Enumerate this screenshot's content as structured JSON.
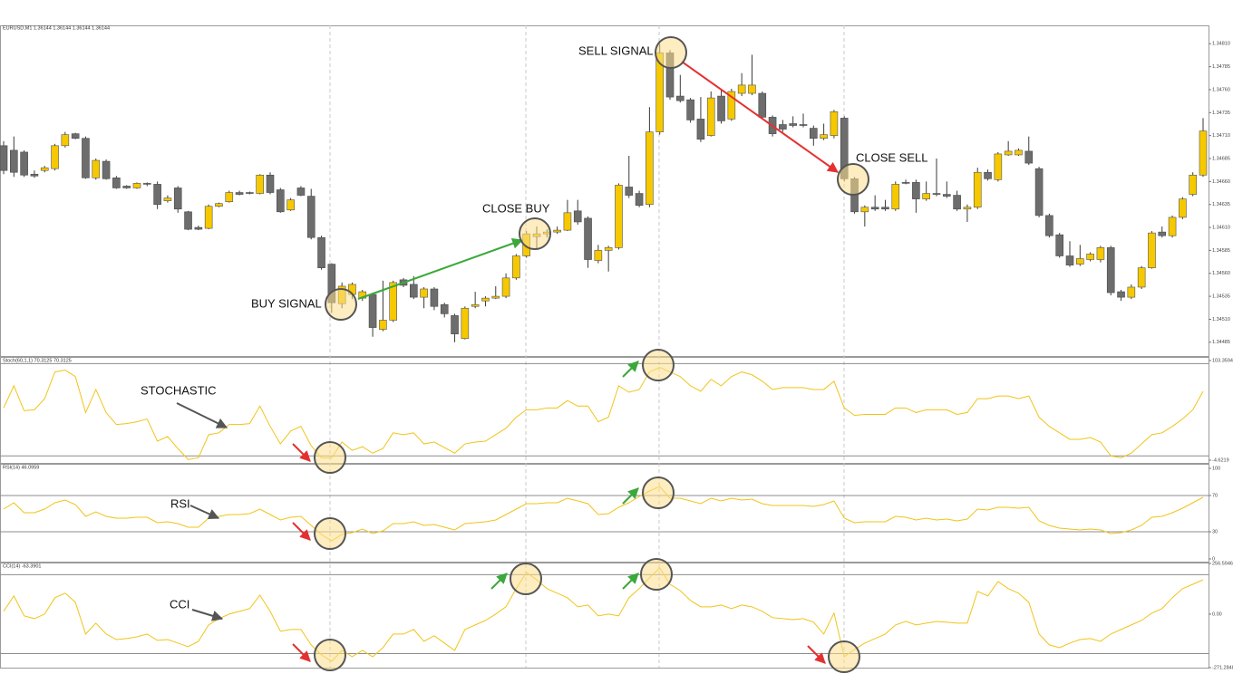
{
  "chart_data": [
    {
      "type": "candlestick",
      "title": "EURUSD,M1 1.36144 1.36144 1.36144 1.36144",
      "open": [
        1.34699,
        1.34694,
        1.34692,
        1.34668,
        1.34672,
        1.34674,
        1.34699,
        1.34712,
        1.34707,
        1.34664,
        1.34682,
        1.34664,
        1.34655,
        1.34653,
        1.34658,
        1.34657,
        1.34639,
        1.34653,
        1.34627,
        1.3461,
        1.34609,
        1.34633,
        1.34638,
        1.34648,
        1.34648,
        1.34647,
        1.34667,
        1.34651,
        1.34629,
        1.34653,
        1.34644,
        1.34599,
        1.3457,
        1.34527,
        1.34537,
        1.34533,
        1.34537,
        1.34499,
        1.34509,
        1.34553,
        1.34548,
        1.34534,
        1.34543,
        1.34526,
        1.34514,
        1.34489,
        1.34524,
        1.3453,
        1.34533,
        1.34535,
        1.34555,
        1.34579,
        1.346,
        1.34603,
        1.34605,
        1.34607,
        1.34628,
        1.3462,
        1.34574,
        1.34585,
        1.34588,
        1.34654,
        1.34647,
        1.34635,
        1.34714,
        1.348,
        1.34753,
        1.34749,
        1.34728,
        1.3471,
        1.34753,
        1.34728,
        1.34756,
        1.34756,
        1.34756,
        1.3473,
        1.34722,
        1.34723,
        1.34722,
        1.34718,
        1.34707,
        1.3471,
        1.34729,
        1.34663,
        1.34627,
        1.34632,
        1.34632,
        1.3463,
        1.34659,
        1.34659,
        1.34641,
        1.34647,
        1.34646,
        1.34645,
        1.3463,
        1.34632,
        1.3467,
        1.34662,
        1.34689,
        1.34689,
        1.34693,
        1.34674,
        1.34623,
        1.34602,
        1.34579,
        1.3457,
        1.34575,
        1.34575,
        1.34588,
        1.3454,
        1.34534,
        1.34545,
        1.34566,
        1.34605,
        1.34601,
        1.34621,
        1.34646,
        1.34667
      ],
      "high": [
        1.34704,
        1.34709,
        1.34694,
        1.34672,
        1.34677,
        1.34701,
        1.34714,
        1.34713,
        1.34709,
        1.34685,
        1.34684,
        1.34666,
        1.34656,
        1.34659,
        1.34659,
        1.3466,
        1.34645,
        1.34655,
        1.34628,
        1.34612,
        1.34635,
        1.34637,
        1.3465,
        1.3465,
        1.34649,
        1.34668,
        1.3467,
        1.34653,
        1.34642,
        1.34655,
        1.34652,
        1.34601,
        1.34571,
        1.3455,
        1.3455,
        1.34542,
        1.34539,
        1.34552,
        1.34552,
        1.34555,
        1.34557,
        1.34545,
        1.34545,
        1.34528,
        1.34516,
        1.34524,
        1.3454,
        1.34535,
        1.34546,
        1.3456,
        1.34581,
        1.34606,
        1.34611,
        1.34608,
        1.34611,
        1.3464,
        1.3464,
        1.34622,
        1.34591,
        1.3459,
        1.34658,
        1.34688,
        1.3465,
        1.34741,
        1.3481,
        1.34803,
        1.34776,
        1.34751,
        1.34752,
        1.34758,
        1.3476,
        1.34761,
        1.34778,
        1.34798,
        1.34758,
        1.34732,
        1.34727,
        1.34731,
        1.34734,
        1.34721,
        1.34723,
        1.34738,
        1.34731,
        1.34665,
        1.34634,
        1.34645,
        1.3464,
        1.3466,
        1.34662,
        1.34662,
        1.3466,
        1.34685,
        1.3466,
        1.3465,
        1.34635,
        1.34675,
        1.34673,
        1.34692,
        1.34704,
        1.34696,
        1.34709,
        1.34676,
        1.34625,
        1.34604,
        1.34595,
        1.34591,
        1.34583,
        1.3459,
        1.3459,
        1.34542,
        1.34548,
        1.34568,
        1.34606,
        1.34611,
        1.34623,
        1.34643,
        1.3467,
        1.34729
      ],
      "low": [
        1.34668,
        1.34665,
        1.34665,
        1.34664,
        1.3467,
        1.34672,
        1.34697,
        1.34706,
        1.34663,
        1.34662,
        1.34662,
        1.34652,
        1.34652,
        1.34652,
        1.34655,
        1.3463,
        1.34637,
        1.34626,
        1.34607,
        1.34607,
        1.34608,
        1.34632,
        1.34637,
        1.34645,
        1.34646,
        1.34646,
        1.34646,
        1.34626,
        1.34628,
        1.34644,
        1.34597,
        1.34564,
        1.34517,
        1.34522,
        1.34532,
        1.3453,
        1.34491,
        1.34497,
        1.34507,
        1.34545,
        1.34532,
        1.34522,
        1.3452,
        1.34512,
        1.34485,
        1.34488,
        1.34522,
        1.34524,
        1.34532,
        1.34533,
        1.34553,
        1.34577,
        1.34586,
        1.34599,
        1.34603,
        1.34606,
        1.34613,
        1.34566,
        1.34571,
        1.34562,
        1.34586,
        1.34642,
        1.34632,
        1.34632,
        1.34711,
        1.34749,
        1.34746,
        1.34724,
        1.34703,
        1.34709,
        1.34723,
        1.34726,
        1.34753,
        1.34754,
        1.34728,
        1.34709,
        1.34714,
        1.34719,
        1.34719,
        1.34699,
        1.34705,
        1.34707,
        1.3466,
        1.34625,
        1.34611,
        1.34628,
        1.34628,
        1.34628,
        1.34657,
        1.34626,
        1.34639,
        1.34644,
        1.34642,
        1.34628,
        1.34616,
        1.3463,
        1.34661,
        1.3466,
        1.34688,
        1.34688,
        1.34678,
        1.34621,
        1.34599,
        1.34577,
        1.34567,
        1.34568,
        1.34573,
        1.34572,
        1.34536,
        1.3453,
        1.34532,
        1.34543,
        1.34565,
        1.34599,
        1.34599,
        1.34619,
        1.34644,
        1.34665
      ],
      "close": [
        1.34672,
        1.3467,
        1.34667,
        1.34666,
        1.34675,
        1.34699,
        1.34711,
        1.34707,
        1.34664,
        1.34683,
        1.34663,
        1.34653,
        1.34653,
        1.34658,
        1.34657,
        1.34635,
        1.34642,
        1.3463,
        1.34608,
        1.34608,
        1.34633,
        1.34636,
        1.34648,
        1.34646,
        1.34647,
        1.34667,
        1.34648,
        1.34627,
        1.3464,
        1.34645,
        1.34599,
        1.34566,
        1.34528,
        1.34546,
        1.34548,
        1.3454,
        1.34501,
        1.34509,
        1.3455,
        1.34547,
        1.34534,
        1.34543,
        1.34524,
        1.34516,
        1.34494,
        1.34522,
        1.34526,
        1.34533,
        1.34535,
        1.34555,
        1.34579,
        1.34603,
        1.34603,
        1.34605,
        1.34607,
        1.34626,
        1.34616,
        1.34575,
        1.34585,
        1.34588,
        1.34656,
        1.34645,
        1.34634,
        1.34714,
        1.348,
        1.34752,
        1.34748,
        1.34727,
        1.34706,
        1.34751,
        1.34726,
        1.34758,
        1.34765,
        1.34765,
        1.3473,
        1.34712,
        1.34717,
        1.34721,
        1.34721,
        1.34707,
        1.34711,
        1.34736,
        1.34663,
        1.34627,
        1.34632,
        1.3463,
        1.3463,
        1.34657,
        1.34658,
        1.34641,
        1.34647,
        1.34646,
        1.34644,
        1.3463,
        1.34632,
        1.3467,
        1.34663,
        1.3469,
        1.34693,
        1.34694,
        1.3468,
        1.34623,
        1.34601,
        1.34579,
        1.34569,
        1.34576,
        1.34581,
        1.34588,
        1.34539,
        1.34534,
        1.34545,
        1.34566,
        1.34604,
        1.34601,
        1.34621,
        1.34641,
        1.34667,
        1.34715
      ],
      "up_color": "#f6c800",
      "down_color": "#6d6d6d",
      "ylim": [
        1.3447,
        1.3483
      ],
      "yticks": [
        {
          "value": 1.3481,
          "label": "1.34810"
        },
        1.34785,
        {
          "value": 1.3476,
          "label": "1.34760"
        },
        1.34735,
        {
          "value": 1.3471,
          "label": "1.34710"
        },
        1.34685,
        {
          "value": 1.3466,
          "label": "1.34660"
        },
        1.34635,
        {
          "value": 1.3461,
          "label": "1.34610"
        },
        1.34585,
        {
          "value": 1.3456,
          "label": "1.34560"
        },
        1.34535,
        {
          "value": 1.3451,
          "label": "1.34510"
        },
        1.34485
      ],
      "annotations": [
        "BUY SIGNAL",
        "CLOSE BUY",
        "SELL SIGNAL",
        "CLOSE SELL"
      ]
    },
    {
      "type": "line",
      "title": "Stoch(60,1,1) 70.3125 70.3125",
      "label": "STOCHASTIC",
      "color": "#f0c419",
      "values": [
        52,
        76,
        49,
        50,
        62,
        91,
        93,
        86,
        47,
        72,
        47,
        34,
        35,
        37,
        40,
        16,
        21,
        8,
        -4,
        -2,
        23,
        25,
        34,
        34,
        35,
        54,
        32,
        13,
        27,
        32,
        11,
        -2,
        -2,
        15,
        6,
        10,
        3,
        8,
        25,
        23,
        25,
        13,
        15,
        9,
        3,
        13,
        15,
        16,
        23,
        30,
        42,
        50,
        50,
        52,
        52,
        60,
        54,
        54,
        37,
        42,
        76,
        69,
        72,
        91,
        96,
        91,
        86,
        76,
        70,
        83,
        76,
        86,
        91,
        88,
        81,
        72,
        74,
        74,
        74,
        72,
        72,
        81,
        52,
        44,
        45,
        45,
        45,
        52,
        52,
        47,
        50,
        50,
        50,
        45,
        47,
        62,
        62,
        65,
        65,
        62,
        65,
        42,
        32,
        25,
        18,
        18,
        20,
        15,
        0,
        -2,
        3,
        13,
        23,
        25,
        32,
        40,
        50,
        70
      ],
      "ylim": [
        -4.6219,
        103.3594
      ],
      "yticks": [
        103.3594,
        -4.6219
      ],
      "levels": [
        100,
        0
      ]
    },
    {
      "type": "line",
      "title": "RSI(14) 46.0959",
      "label": "RSI",
      "color": "#f0c419",
      "values": [
        55,
        62,
        51,
        51,
        55,
        62,
        65,
        60,
        47,
        52,
        47,
        45,
        45,
        46,
        46,
        40,
        41,
        39,
        35,
        35,
        45,
        47,
        49,
        49,
        50,
        55,
        49,
        43,
        46,
        47,
        37,
        27,
        20,
        27,
        29,
        33,
        28,
        31,
        39,
        39,
        41,
        37,
        38,
        35,
        32,
        39,
        40,
        41,
        43,
        49,
        55,
        61,
        61,
        62,
        62,
        67,
        64,
        61,
        49,
        50,
        57,
        62,
        69,
        75,
        80,
        67,
        67,
        64,
        61,
        67,
        64,
        67,
        65,
        66,
        61,
        59,
        59,
        59,
        59,
        58,
        60,
        64,
        45,
        40,
        41,
        41,
        41,
        47,
        46,
        43,
        45,
        43,
        44,
        42,
        44,
        55,
        54,
        57,
        57,
        56,
        57,
        42,
        37,
        34,
        33,
        32,
        33,
        32,
        28,
        29,
        32,
        37,
        46,
        47,
        51,
        56,
        62,
        68
      ],
      "ylim": [
        0,
        100
      ],
      "yticks": [
        100,
        70,
        30,
        0
      ],
      "levels": [
        70,
        30
      ]
    },
    {
      "type": "line",
      "title": "CCI(14) -63.3901",
      "label": "CCI",
      "color": "#f0c419",
      "values": [
        14,
        92,
        -9,
        -23,
        0,
        83,
        106,
        60,
        -101,
        -46,
        -101,
        -129,
        -124,
        -115,
        -101,
        -133,
        -129,
        -147,
        -165,
        -138,
        -55,
        -23,
        0,
        14,
        28,
        96,
        14,
        -87,
        -78,
        -78,
        -156,
        -207,
        -239,
        -184,
        -216,
        -184,
        -216,
        -170,
        -101,
        -101,
        -78,
        -138,
        -110,
        -147,
        -184,
        -78,
        -55,
        -32,
        0,
        37,
        129,
        211,
        174,
        129,
        106,
        83,
        37,
        46,
        -9,
        0,
        -9,
        83,
        129,
        184,
        234,
        151,
        119,
        69,
        37,
        37,
        46,
        28,
        46,
        37,
        14,
        -18,
        -23,
        -28,
        -23,
        -41,
        -101,
        5,
        -216,
        -179,
        -147,
        -124,
        -101,
        -55,
        -37,
        -55,
        -46,
        -37,
        -41,
        -46,
        -46,
        115,
        92,
        165,
        129,
        106,
        60,
        -101,
        -156,
        -170,
        -147,
        -129,
        -124,
        -138,
        -101,
        -78,
        -55,
        -32,
        5,
        28,
        83,
        129,
        151,
        174
      ],
      "ylim": [
        -271.2848,
        256.5946
      ],
      "yticks": [
        256.5946,
        {
          "value": 0,
          "label": "0.00"
        },
        -271.2848
      ],
      "levels": [
        200,
        -200
      ]
    }
  ]
}
